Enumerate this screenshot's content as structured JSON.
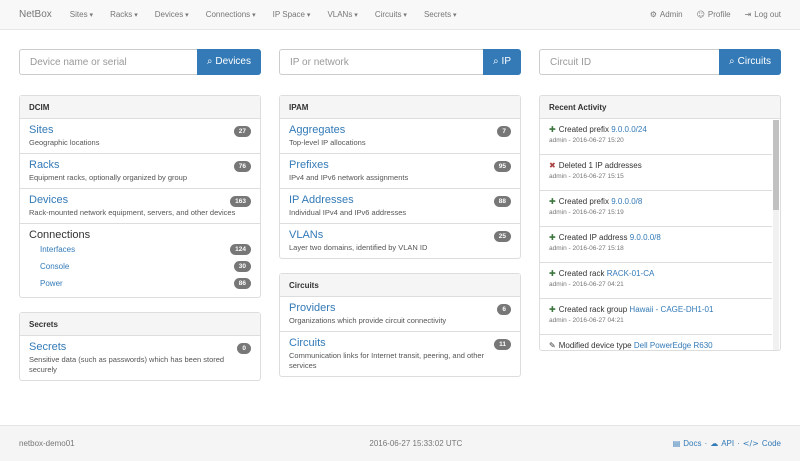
{
  "navbar": {
    "brand": "NetBox",
    "menus": [
      "Sites",
      "Racks",
      "Devices",
      "Connections",
      "IP Space",
      "VLANs",
      "Circuits",
      "Secrets"
    ],
    "user_links": [
      {
        "label": "Admin",
        "icon": "cog"
      },
      {
        "label": "Profile",
        "icon": "user"
      },
      {
        "label": "Log out",
        "icon": "logout"
      }
    ]
  },
  "search": [
    {
      "placeholder": "Device name or serial",
      "button": "Devices"
    },
    {
      "placeholder": "IP or network",
      "button": "IP"
    },
    {
      "placeholder": "Circuit ID",
      "button": "Circuits"
    }
  ],
  "columns": [
    [
      {
        "title": "DCIM",
        "items": [
          {
            "name": "Sites",
            "count": "27",
            "desc": "Geographic locations"
          },
          {
            "name": "Racks",
            "count": "76",
            "desc": "Equipment racks, optionally organized by group"
          },
          {
            "name": "Devices",
            "count": "163",
            "desc": "Rack-mounted network equipment, servers, and other devices"
          }
        ],
        "group": {
          "title": "Connections",
          "items": [
            {
              "name": "Interfaces",
              "count": "124"
            },
            {
              "name": "Console",
              "count": "30"
            },
            {
              "name": "Power",
              "count": "86"
            }
          ]
        }
      },
      {
        "title": "Secrets",
        "items": [
          {
            "name": "Secrets",
            "count": "0",
            "desc": "Sensitive data (such as passwords) which has been stored securely"
          }
        ]
      }
    ],
    [
      {
        "title": "IPAM",
        "items": [
          {
            "name": "Aggregates",
            "count": "7",
            "desc": "Top-level IP allocations"
          },
          {
            "name": "Prefixes",
            "count": "95",
            "desc": "IPv4 and IPv6 network assignments"
          },
          {
            "name": "IP Addresses",
            "count": "88",
            "desc": "Individual IPv4 and IPv6 addresses"
          },
          {
            "name": "VLANs",
            "count": "25",
            "desc": "Layer two domains, identified by VLAN ID"
          }
        ]
      },
      {
        "title": "Circuits",
        "items": [
          {
            "name": "Providers",
            "count": "6",
            "desc": "Organizations which provide circuit connectivity"
          },
          {
            "name": "Circuits",
            "count": "11",
            "desc": "Communication links for Internet transit, peering, and other services"
          }
        ]
      }
    ]
  ],
  "activity": {
    "title": "Recent Activity",
    "items": [
      {
        "icon": "plus",
        "action": "Created prefix",
        "link": "9.0.0.0/24",
        "meta": "admin - 2016-06-27 15:20"
      },
      {
        "icon": "remove",
        "action": "Deleted 1 IP addresses",
        "meta": "admin - 2016-06-27 15:15"
      },
      {
        "icon": "plus",
        "action": "Created prefix",
        "link": "9.0.0.0/8",
        "meta": "admin - 2016-06-27 15:19"
      },
      {
        "icon": "plus",
        "action": "Created IP address",
        "link": "9.0.0.0/8",
        "meta": "admin - 2016-06-27 15:18"
      },
      {
        "icon": "plus",
        "action": "Created rack",
        "link": "RACK-01-CA",
        "meta": "admin - 2016-06-27 04:21"
      },
      {
        "icon": "plus",
        "action": "Created rack group",
        "link": "Hawaii - CAGE-DH1-01",
        "meta": "admin - 2016-06-27 04:21"
      },
      {
        "icon": "pencil",
        "action": "Modified device type",
        "link": "Dell PowerEdge R630"
      }
    ]
  },
  "footer": {
    "host": "netbox-demo01",
    "time": "2016-06-27 15:33:02 UTC",
    "links": [
      {
        "label": "Docs",
        "icon": "book"
      },
      {
        "label": "API",
        "icon": "cloud"
      },
      {
        "label": "Code",
        "icon": "code"
      }
    ]
  }
}
